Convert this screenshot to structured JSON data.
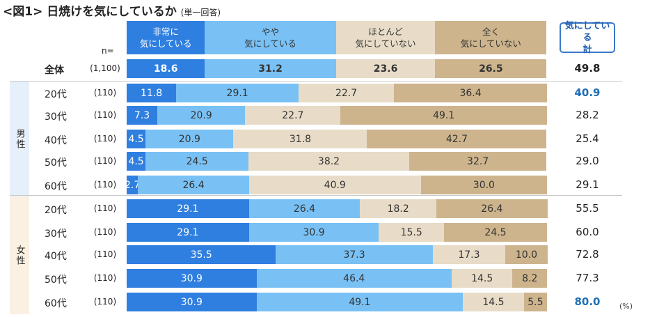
{
  "title": "<図1> 日焼けを気にしているか",
  "title_note": "(単一回答)",
  "n_label": "n=",
  "unit": "(%)",
  "total_header": "気にしている\n計",
  "colors": {
    "cat0": "#2f7fe0",
    "cat1": "#79c1f5",
    "cat2": "#e8dcc8",
    "cat3": "#cdb48d",
    "male_band": "#e6f0fb",
    "female_band": "#fbf1e2",
    "highlight": "#1f6fb5"
  },
  "groups": {
    "male": "男性",
    "female": "女性"
  },
  "chart_data": {
    "type": "bar",
    "orientation": "horizontal",
    "stacked": true,
    "title": "<図1> 日焼けを気にしているか",
    "subtitle": "(単一回答)",
    "unit": "%",
    "series": [
      {
        "name": "非常に\n気にしている",
        "values": [
          18.6,
          11.8,
          7.3,
          4.5,
          4.5,
          2.7,
          29.1,
          29.1,
          35.5,
          30.9,
          30.9
        ]
      },
      {
        "name": "やや\n気にしている",
        "values": [
          31.2,
          29.1,
          20.9,
          20.9,
          24.5,
          26.4,
          26.4,
          30.9,
          37.3,
          46.4,
          49.1
        ]
      },
      {
        "name": "ほとんど\n気にしていない",
        "values": [
          23.6,
          22.7,
          22.7,
          31.8,
          38.2,
          40.9,
          18.2,
          15.5,
          17.3,
          14.5,
          14.5
        ]
      },
      {
        "name": "全く\n気にしていない",
        "values": [
          26.5,
          36.4,
          49.1,
          42.7,
          32.7,
          30.0,
          26.4,
          24.5,
          10.0,
          8.2,
          5.5
        ]
      }
    ],
    "rows": [
      {
        "label": "全体",
        "group": "",
        "n": "(1,100)",
        "total": "49.8"
      },
      {
        "label": "20代",
        "group": "male",
        "n": "(110)",
        "total": "40.9"
      },
      {
        "label": "30代",
        "group": "male",
        "n": "(110)",
        "total": "28.2"
      },
      {
        "label": "40代",
        "group": "male",
        "n": "(110)",
        "total": "25.4"
      },
      {
        "label": "50代",
        "group": "male",
        "n": "(110)",
        "total": "29.0"
      },
      {
        "label": "60代",
        "group": "male",
        "n": "(110)",
        "total": "29.1"
      },
      {
        "label": "20代",
        "group": "female",
        "n": "(110)",
        "total": "55.5"
      },
      {
        "label": "30代",
        "group": "female",
        "n": "(110)",
        "total": "60.0"
      },
      {
        "label": "40代",
        "group": "female",
        "n": "(110)",
        "total": "72.8"
      },
      {
        "label": "50代",
        "group": "female",
        "n": "(110)",
        "total": "77.3"
      },
      {
        "label": "60代",
        "group": "female",
        "n": "(110)",
        "total": "80.0"
      }
    ],
    "highlighted_totals": [
      1,
      10
    ],
    "xlim": [
      0,
      100
    ]
  }
}
